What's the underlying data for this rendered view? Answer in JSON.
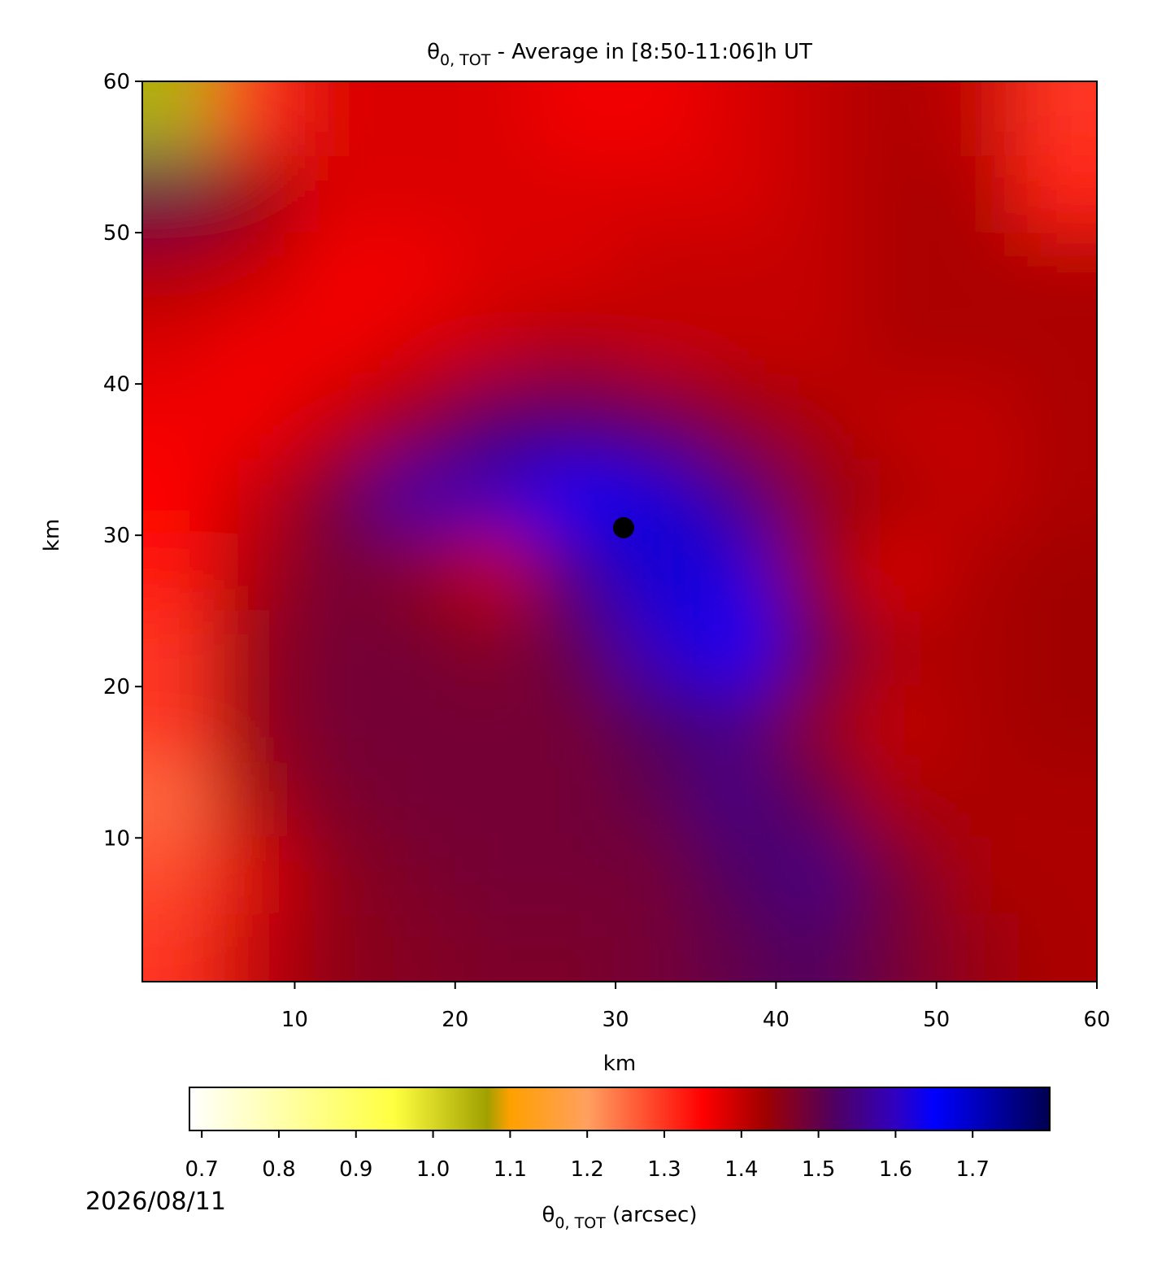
{
  "chart_data": {
    "type": "heatmap",
    "title_symbol": "θ",
    "title_subscript": "0, TOT",
    "title_rest": " - Average in [8:50-11:06]h UT",
    "xlabel": "km",
    "ylabel": "km",
    "xlim": [
      0.5,
      60
    ],
    "ylim": [
      0.5,
      60
    ],
    "xticks": [
      10,
      20,
      30,
      40,
      50,
      60
    ],
    "yticks": [
      10,
      20,
      30,
      40,
      50,
      60
    ],
    "x": [
      2.5,
      7.5,
      12.5,
      17.5,
      22.5,
      27.5,
      32.5,
      37.5,
      42.5,
      47.5,
      52.5,
      57.5
    ],
    "y": [
      57.5,
      52.5,
      47.5,
      42.5,
      37.5,
      32.5,
      27.5,
      22.5,
      17.5,
      12.5,
      7.5,
      2.5
    ],
    "cell_size": 5,
    "z": [
      [
        1.05,
        1.3,
        1.38,
        1.38,
        1.38,
        1.36,
        1.36,
        1.38,
        1.4,
        1.42,
        1.4,
        1.3
      ],
      [
        1.5,
        1.45,
        1.38,
        1.38,
        1.38,
        1.38,
        1.38,
        1.38,
        1.4,
        1.42,
        1.42,
        1.32
      ],
      [
        1.42,
        1.4,
        1.36,
        1.36,
        1.38,
        1.38,
        1.4,
        1.4,
        1.4,
        1.42,
        1.42,
        1.42
      ],
      [
        1.38,
        1.36,
        1.36,
        1.38,
        1.4,
        1.42,
        1.4,
        1.4,
        1.4,
        1.42,
        1.42,
        1.42
      ],
      [
        1.36,
        1.36,
        1.4,
        1.45,
        1.52,
        1.52,
        1.5,
        1.45,
        1.42,
        1.4,
        1.4,
        1.42
      ],
      [
        1.35,
        1.4,
        1.48,
        1.58,
        1.6,
        1.65,
        1.68,
        1.55,
        1.45,
        1.42,
        1.4,
        1.42
      ],
      [
        1.33,
        1.42,
        1.48,
        1.45,
        1.4,
        1.55,
        1.68,
        1.62,
        1.45,
        1.38,
        1.42,
        1.43
      ],
      [
        1.3,
        1.44,
        1.48,
        1.48,
        1.46,
        1.5,
        1.6,
        1.65,
        1.5,
        1.42,
        1.42,
        1.43
      ],
      [
        1.3,
        1.44,
        1.48,
        1.48,
        1.48,
        1.48,
        1.52,
        1.55,
        1.45,
        1.4,
        1.42,
        1.43
      ],
      [
        1.25,
        1.42,
        1.47,
        1.48,
        1.48,
        1.48,
        1.5,
        1.55,
        1.5,
        1.42,
        1.42,
        1.42
      ],
      [
        1.28,
        1.38,
        1.45,
        1.47,
        1.48,
        1.48,
        1.48,
        1.52,
        1.55,
        1.48,
        1.42,
        1.42
      ],
      [
        1.3,
        1.4,
        1.45,
        1.46,
        1.47,
        1.47,
        1.48,
        1.5,
        1.52,
        1.48,
        1.44,
        1.42
      ]
    ],
    "marker": {
      "x": 30.5,
      "y": 30.5,
      "color": "#000000"
    },
    "colormap": [
      [
        0.684,
        "#ffffff"
      ],
      [
        0.95,
        "#ffff40"
      ],
      [
        1.07,
        "#a0a000"
      ],
      [
        1.1,
        "#ffa000"
      ],
      [
        1.2,
        "#ffa060"
      ],
      [
        1.35,
        "#ff0000"
      ],
      [
        1.43,
        "#a00000"
      ],
      [
        1.52,
        "#500060"
      ],
      [
        1.6,
        "#3000c0"
      ],
      [
        1.65,
        "#0000ff"
      ],
      [
        1.8,
        "#000050"
      ]
    ],
    "clim": [
      0.684,
      1.8
    ],
    "cticks": [
      0.7,
      0.8,
      0.9,
      {
        "value": 1,
        "label": "1.0"
      },
      1.1,
      1.2,
      1.3,
      1.4,
      1.5,
      1.6,
      1.7
    ],
    "clabel_symbol": "θ",
    "clabel_subscript": "0, TOT",
    "clabel_rest": " (arcsec)",
    "date": "2026/08/11"
  }
}
